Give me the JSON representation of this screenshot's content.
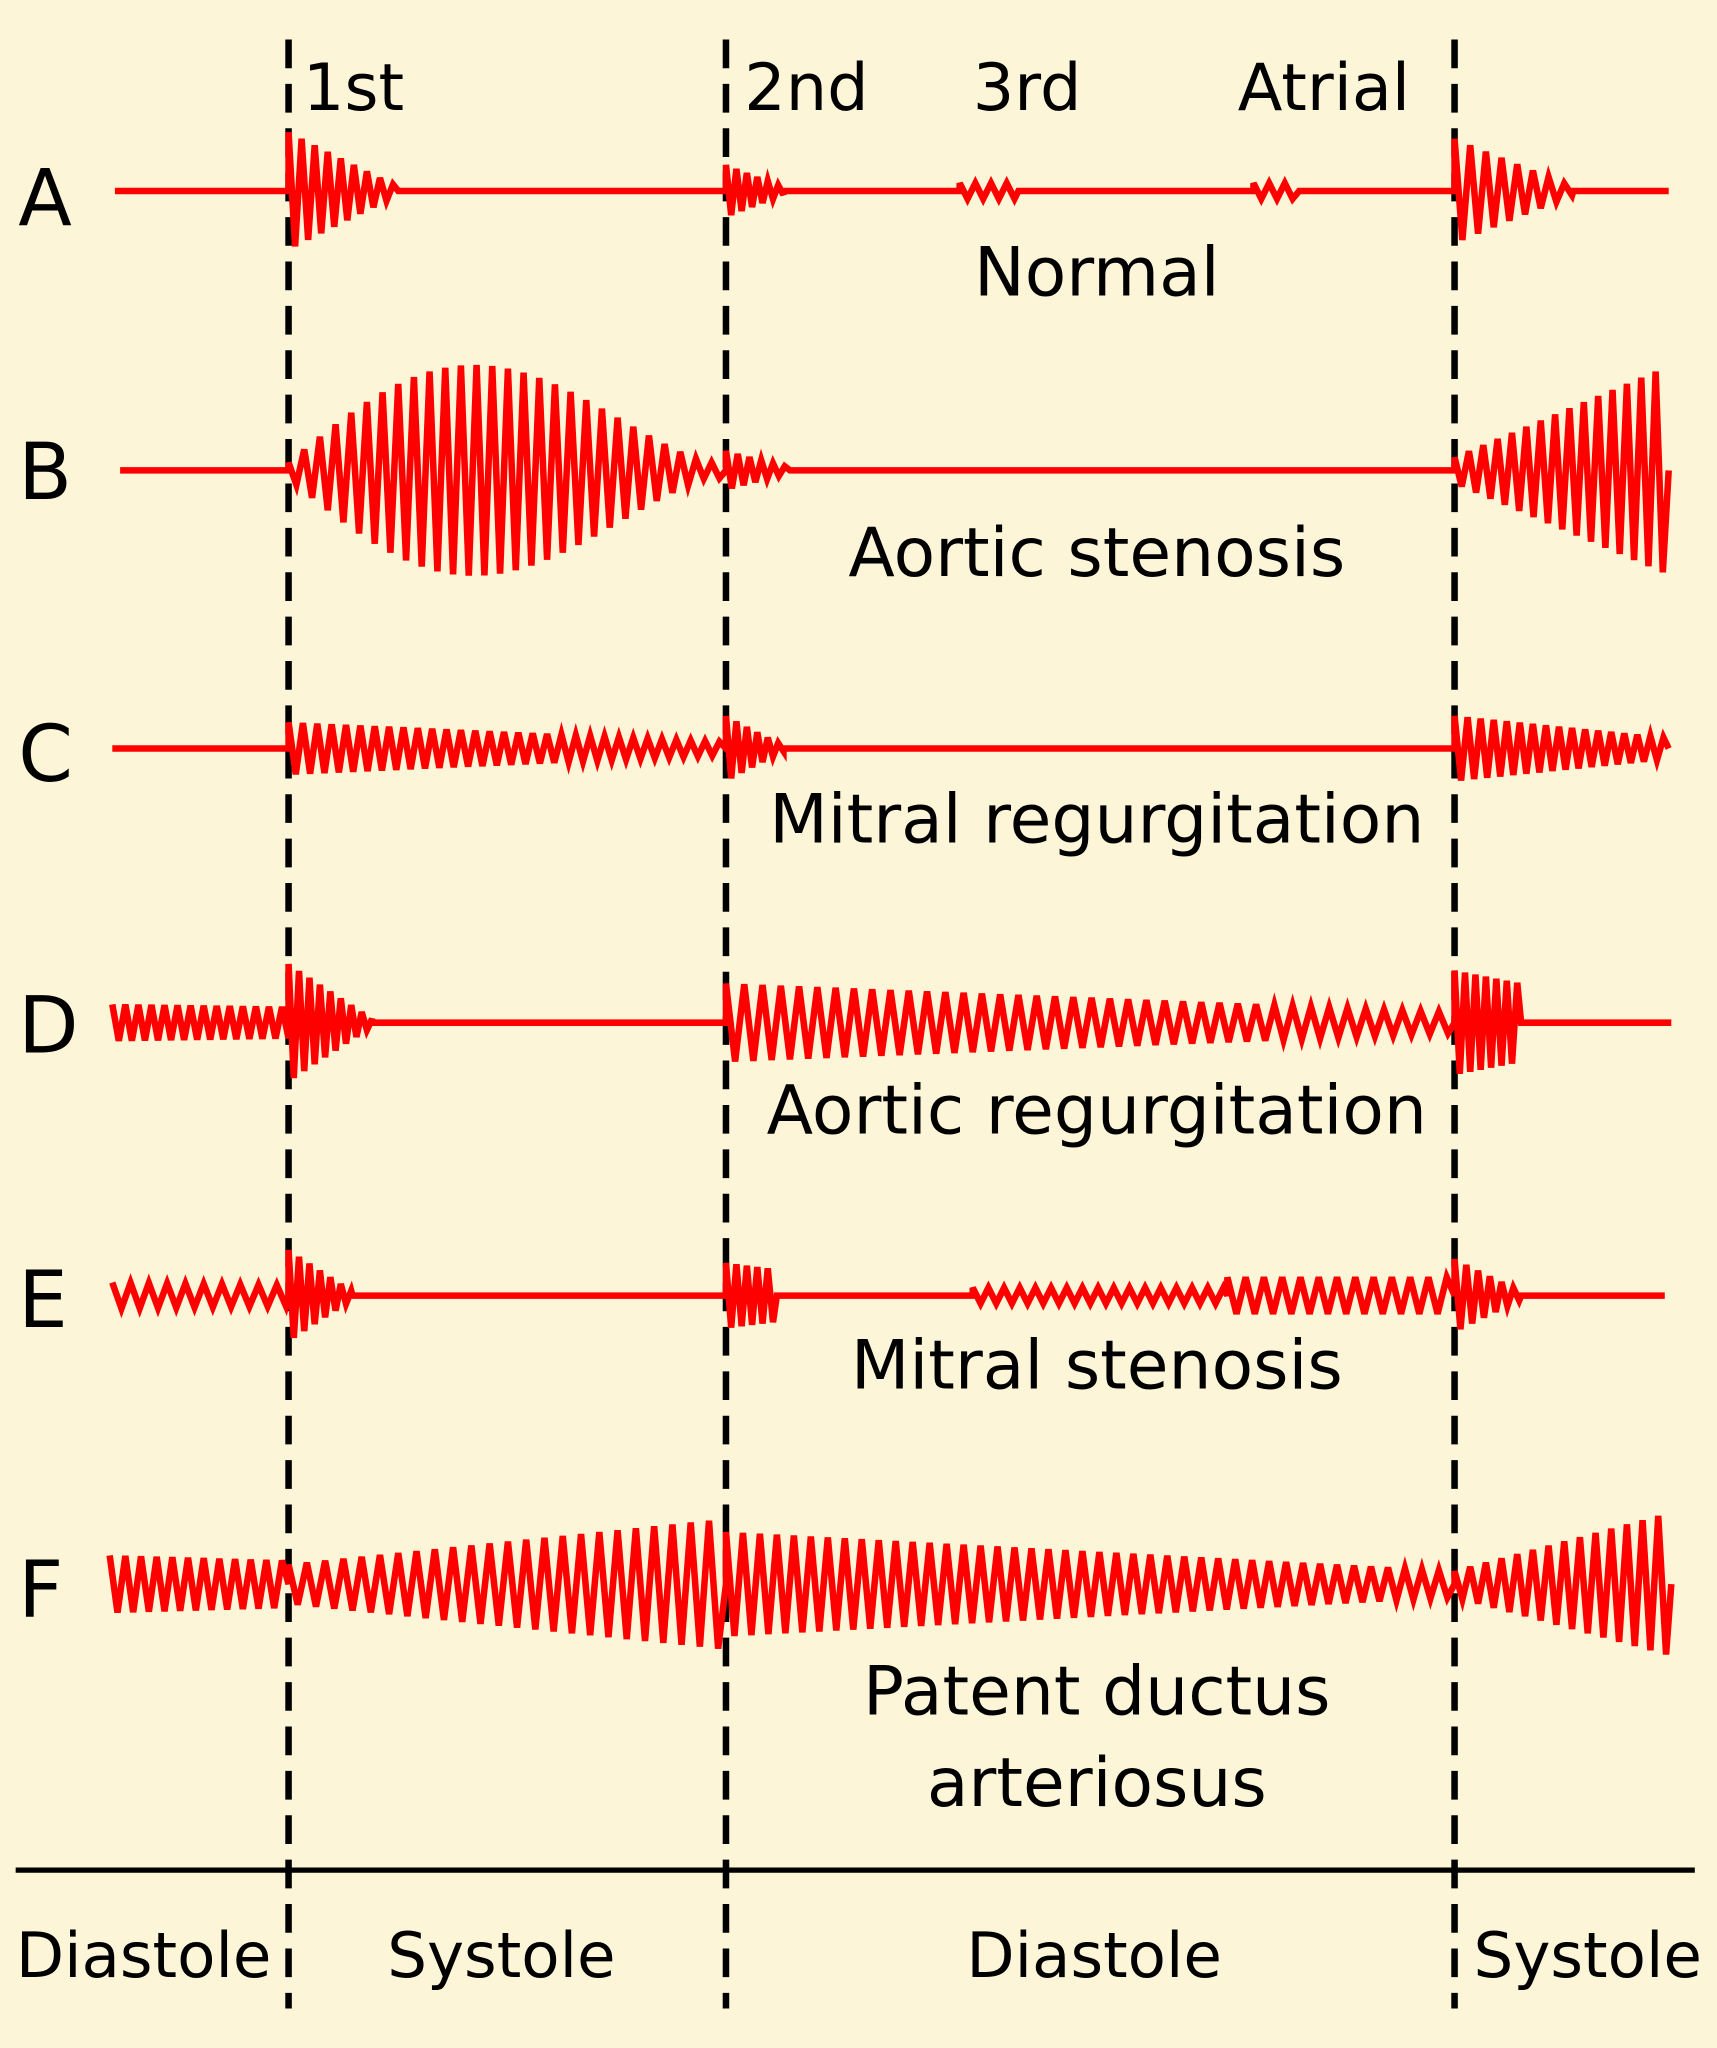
{
  "header": {
    "sounds": [
      "1st",
      "2nd",
      "3rd",
      "Atrial"
    ]
  },
  "rows": [
    {
      "letter": "A",
      "lines": [
        "Normal"
      ]
    },
    {
      "letter": "B",
      "lines": [
        "Aortic stenosis"
      ]
    },
    {
      "letter": "C",
      "lines": [
        "Mitral regurgitation"
      ]
    },
    {
      "letter": "D",
      "lines": [
        "Aortic regurgitation"
      ]
    },
    {
      "letter": "E",
      "lines": [
        "Mitral stenosis"
      ]
    },
    {
      "letter": "F",
      "lines": [
        "Patent ductus",
        "arteriosus"
      ]
    }
  ],
  "footer": {
    "phases": [
      "Diastole",
      "Systole",
      "Diastole",
      "Systole"
    ]
  }
}
